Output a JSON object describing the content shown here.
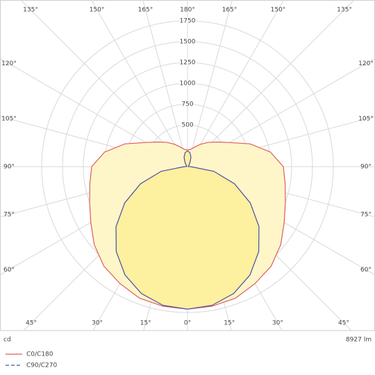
{
  "chart_data": {
    "type": "polar",
    "unit_label": "cd",
    "flux_label": "8927 lm",
    "angles": [
      0,
      10,
      20,
      30,
      40,
      50,
      60,
      70,
      80,
      90,
      100,
      110,
      120,
      130,
      140,
      150,
      160,
      170,
      180
    ],
    "series": [
      {
        "name": "C0/C180",
        "color": "#e05a5a",
        "fill": "#fef6c9",
        "dash": "none",
        "values": [
          1710,
          1700,
          1680,
          1620,
          1560,
          1460,
          1340,
          1250,
          1190,
          1150,
          1010,
          800,
          580,
          460,
          380,
          310,
          250,
          210,
          200
        ]
      },
      {
        "name": "C90/C270",
        "color": "#4b4ba6",
        "fill": "#fdf09f",
        "dash": "5,3",
        "values": [
          1710,
          1690,
          1620,
          1500,
          1330,
          1120,
          870,
          600,
          320,
          40,
          10,
          10,
          10,
          20,
          30,
          60,
          120,
          170,
          190
        ]
      }
    ],
    "rlim": [
      0,
      1750
    ],
    "rticks": [
      500,
      750,
      1000,
      1250,
      1500,
      1750
    ],
    "angle_ticks": [
      {
        "value": 0,
        "label": "0°"
      },
      {
        "value": 15,
        "label": "15°"
      },
      {
        "value": 30,
        "label": "30°"
      },
      {
        "value": 45,
        "label": "45°"
      },
      {
        "value": 60,
        "label": "60°"
      },
      {
        "value": 75,
        "label": "75°"
      },
      {
        "value": 90,
        "label": "90°"
      },
      {
        "value": 105,
        "label": "105°"
      },
      {
        "value": 120,
        "label": "120°"
      },
      {
        "value": 135,
        "label": "135°"
      },
      {
        "value": 150,
        "label": "150°"
      },
      {
        "value": 165,
        "label": "165°"
      },
      {
        "value": 180,
        "label": "180°"
      }
    ]
  }
}
